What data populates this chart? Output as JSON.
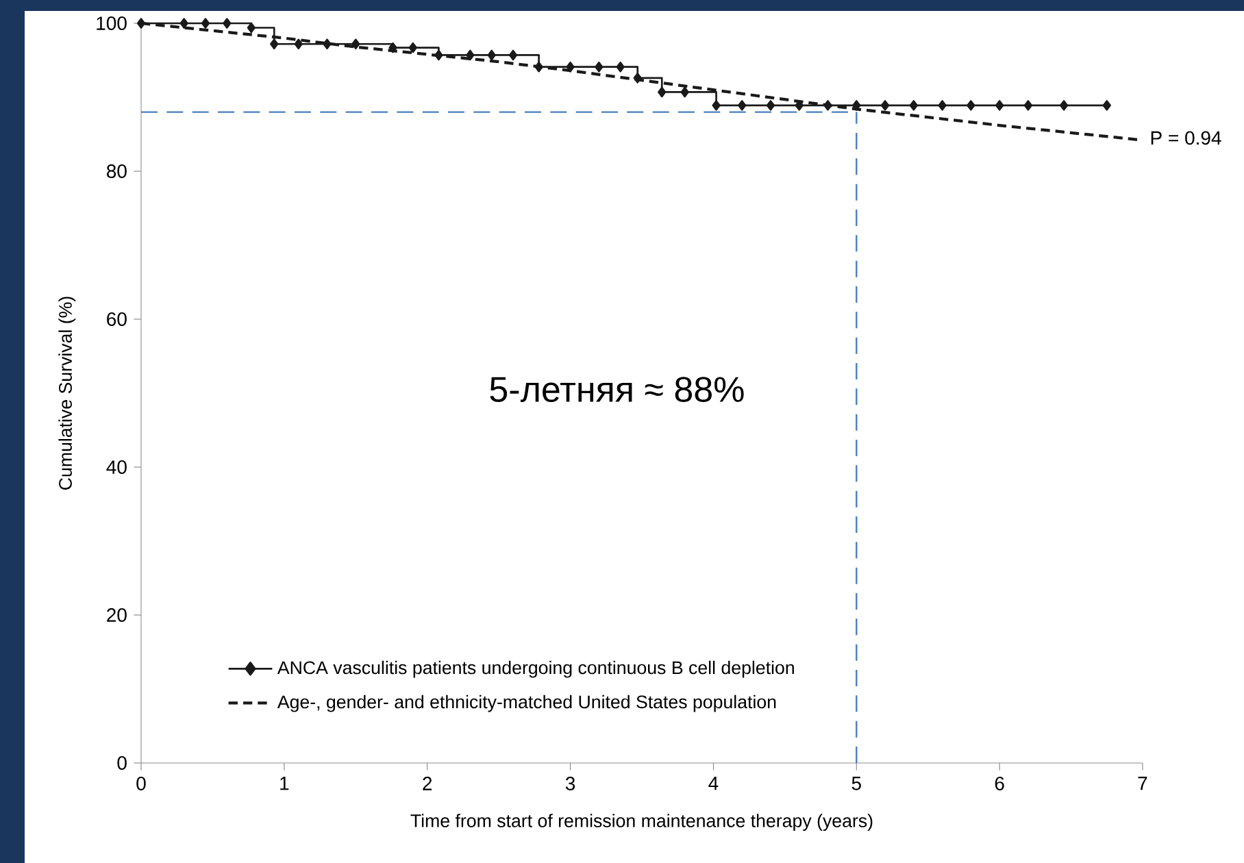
{
  "chart_data": {
    "type": "line",
    "xlabel": "Time from start of remission maintenance therapy (years)",
    "ylabel": "Cumulative Survival (%)",
    "xlim": [
      0,
      7
    ],
    "ylim": [
      0,
      100
    ],
    "xticks": [
      0,
      1,
      2,
      3,
      4,
      5,
      6,
      7
    ],
    "yticks": [
      0,
      20,
      40,
      60,
      80,
      100
    ],
    "legend": "bottom left",
    "series": [
      {
        "name": "ANCA vasculitis patients undergoing continuous B cell depletion",
        "type": "step",
        "color": "#1a1a1a",
        "marker": "diamond",
        "line_style": "solid",
        "x": [
          0,
          0.3,
          0.45,
          0.6,
          0.77,
          0.93,
          1.1,
          1.3,
          1.5,
          1.76,
          1.9,
          2.08,
          2.3,
          2.45,
          2.6,
          2.78,
          3.0,
          3.2,
          3.35,
          3.47,
          3.64,
          3.8,
          4.02,
          4.2,
          4.4,
          4.6,
          4.8,
          5.0,
          5.2,
          5.4,
          5.6,
          5.8,
          6.0,
          6.2,
          6.45,
          6.75
        ],
        "values": [
          100,
          100,
          100,
          100,
          99.4,
          97.2,
          97.2,
          97.2,
          97.2,
          96.7,
          96.7,
          95.7,
          95.7,
          95.7,
          95.7,
          94.1,
          94.1,
          94.1,
          94.1,
          92.6,
          90.7,
          90.7,
          88.9,
          88.9,
          88.9,
          88.9,
          88.9,
          88.9,
          88.9,
          88.9,
          88.9,
          88.9,
          88.9,
          88.9,
          88.9,
          88.9
        ]
      },
      {
        "name": "Age-, gender- and ethnicity-matched United States population",
        "type": "line",
        "color": "#1a1a1a",
        "marker": "none",
        "line_style": "dashed",
        "x": [
          0,
          0.5,
          1,
          1.5,
          2,
          2.5,
          3,
          3.5,
          4,
          4.5,
          5,
          5.5,
          6,
          6.5,
          7
        ],
        "values": [
          100,
          99.0,
          98.0,
          96.8,
          95.8,
          94.8,
          93.6,
          92.3,
          91.0,
          89.7,
          88.4,
          87.3,
          86.2,
          85.2,
          84.2
        ]
      }
    ],
    "ref_lines": [
      {
        "axis": "y",
        "value": 88,
        "color": "#4a7ebf",
        "line_style": "dashed"
      },
      {
        "axis": "x",
        "value": 5,
        "color": "#4a7ebf",
        "line_style": "dashed"
      }
    ],
    "annotations": [
      "P = 0.94",
      "5-летняя ≈ 88%"
    ]
  }
}
